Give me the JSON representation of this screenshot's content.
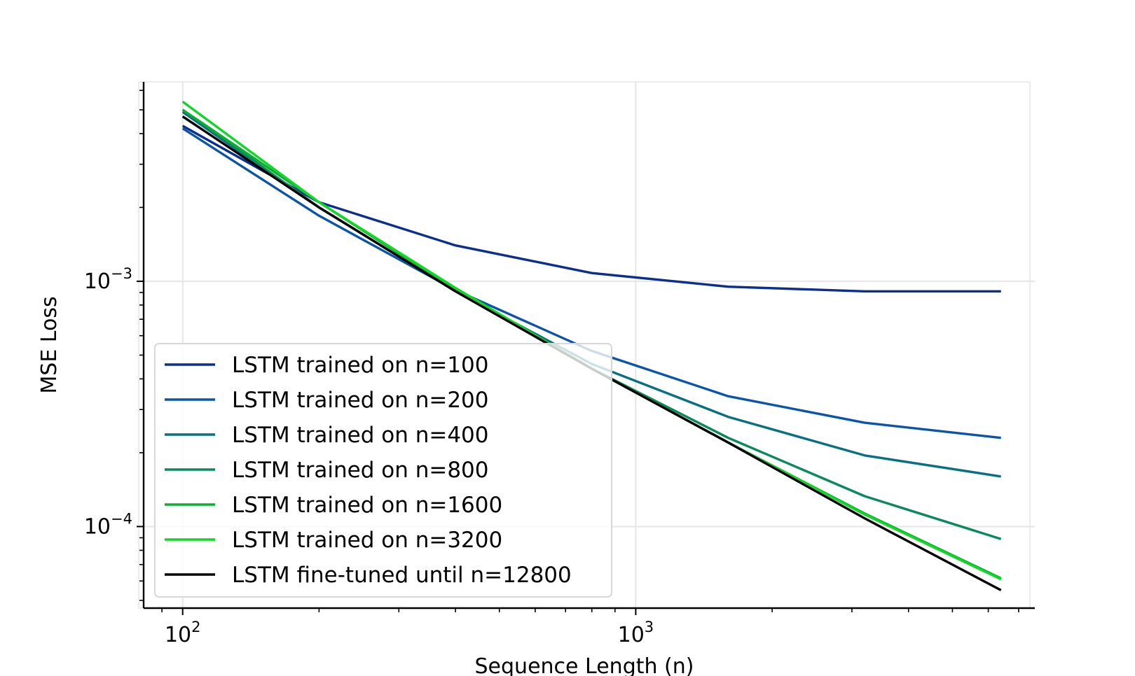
{
  "chart_data": {
    "type": "line",
    "xscale": "log",
    "yscale": "log",
    "xlabel": "Sequence Length (n)",
    "ylabel": "MSE Loss",
    "xlim": [
      82,
      7600
    ],
    "ylim": [
      4.65e-05,
      0.0065
    ],
    "grid": true,
    "legend_position": "lower-left",
    "x": [
      100,
      200,
      400,
      800,
      1600,
      3200,
      6400
    ],
    "x_ticks": [
      {
        "value": 100,
        "base": "10",
        "exp": "2"
      },
      {
        "value": 1000,
        "base": "10",
        "exp": "3"
      }
    ],
    "y_ticks": [
      {
        "value": 0.001,
        "base": "10",
        "exp": "−3"
      },
      {
        "value": 0.0001,
        "base": "10",
        "exp": "−4"
      }
    ],
    "series": [
      {
        "name": "LSTM trained on n=100",
        "color": "#0a2f8f",
        "values": [
          0.0043,
          0.0021,
          0.0014,
          0.00108,
          0.00095,
          0.00091,
          0.00091
        ]
      },
      {
        "name": "LSTM trained on n=200",
        "color": "#0a55a8",
        "values": [
          0.0042,
          0.00185,
          0.00092,
          0.00052,
          0.00034,
          0.000265,
          0.00023
        ]
      },
      {
        "name": "LSTM trained on n=400",
        "color": "#087083",
        "values": [
          0.0049,
          0.002,
          0.00091,
          0.00046,
          0.00028,
          0.000195,
          0.00016
        ]
      },
      {
        "name": "LSTM trained on n=800",
        "color": "#0a8a5c",
        "values": [
          0.005,
          0.002,
          0.00091,
          0.00044,
          0.00023,
          0.000133,
          8.9e-05
        ]
      },
      {
        "name": "LSTM trained on n=1600",
        "color": "#0aae30",
        "values": [
          0.005,
          0.0021,
          0.00092,
          0.00044,
          0.00022,
          0.000113,
          6.15e-05
        ]
      },
      {
        "name": "LSTM trained on n=3200",
        "color": "#14d628",
        "values": [
          0.0054,
          0.0021,
          0.00094,
          0.00044,
          0.00022,
          0.000112,
          6.1e-05
        ]
      },
      {
        "name": "LSTM fine-tuned until n=12800",
        "color": "#000000",
        "values": [
          0.0047,
          0.002,
          0.00091,
          0.00044,
          0.00022,
          0.000108,
          5.5e-05
        ]
      }
    ]
  }
}
